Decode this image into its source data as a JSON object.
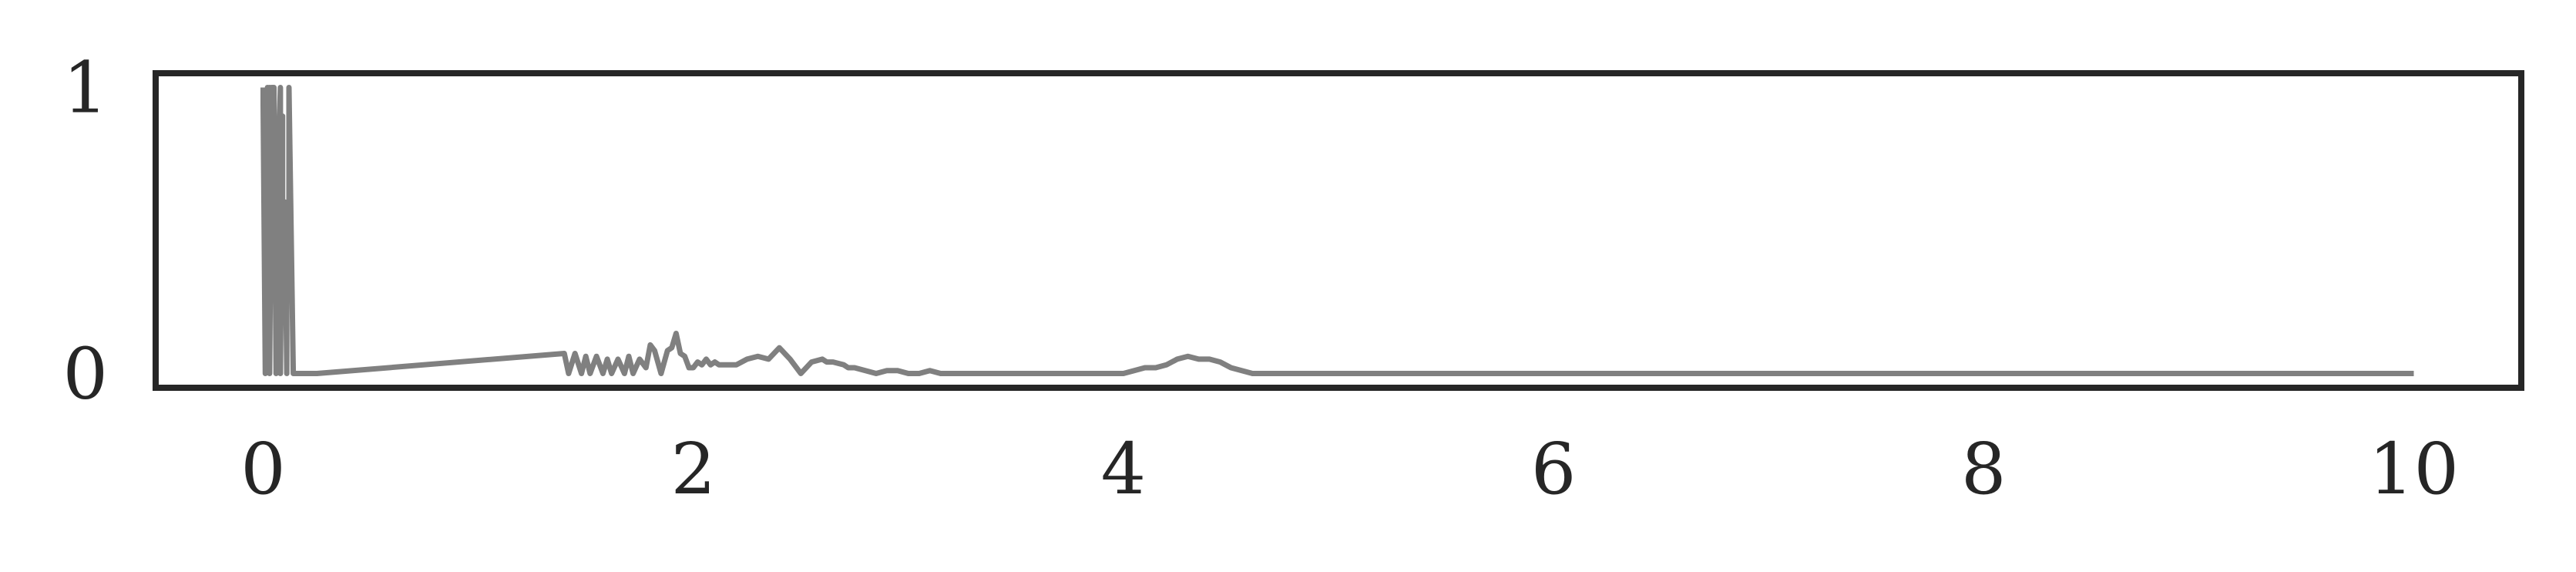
{
  "chart_data": {
    "type": "line",
    "title": "",
    "xlabel": "",
    "ylabel": "",
    "xlim": [
      -0.5,
      10.5
    ],
    "ylim": [
      -0.05,
      1.05
    ],
    "grid": false,
    "legend": "none",
    "x_ticks": [
      "0",
      "2",
      "4",
      "6",
      "8",
      "10"
    ],
    "x_tick_values": [
      0,
      2,
      4,
      6,
      8,
      10
    ],
    "y_ticks": [
      "0",
      "1"
    ],
    "y_tick_values": [
      0,
      1
    ],
    "colors": {
      "line": "#808080",
      "frame": "#262626",
      "text": "#262626"
    },
    "series": [
      {
        "x": [
          0.0,
          0.0,
          0.01,
          0.02,
          0.02,
          0.03,
          0.03,
          0.04,
          0.05,
          0.06,
          0.07,
          0.08,
          0.08,
          0.09,
          0.09,
          0.1,
          0.11,
          0.11,
          0.12,
          0.12,
          0.13,
          0.14,
          0.15,
          0.16,
          0.16,
          0.17,
          0.18,
          0.18,
          0.19,
          0.2,
          0.21,
          0.22,
          0.23,
          0.24,
          0.25,
          1.4,
          1.42,
          1.45,
          1.48,
          1.5,
          1.52,
          1.55,
          1.58,
          1.6,
          1.62,
          1.65,
          1.68,
          1.7,
          1.72,
          1.75,
          1.78,
          1.8,
          1.82,
          1.85,
          1.88,
          1.9,
          1.92,
          1.94,
          1.96,
          1.98,
          2.0,
          2.02,
          2.04,
          2.06,
          2.08,
          2.1,
          2.12,
          2.15,
          2.2,
          2.25,
          2.3,
          2.35,
          2.4,
          2.45,
          2.5,
          2.55,
          2.6,
          2.62,
          2.65,
          2.7,
          2.72,
          2.75,
          2.8,
          2.85,
          2.9,
          2.95,
          3.0,
          3.05,
          3.1,
          3.15,
          3.2,
          3.3,
          3.4,
          3.6,
          4.0,
          4.05,
          4.1,
          4.15,
          4.2,
          4.25,
          4.3,
          4.35,
          4.4,
          4.45,
          4.5,
          4.6,
          4.8,
          10.0
        ],
        "y": [
          1.0,
          0.94,
          0.0,
          1.0,
          0.6,
          1.0,
          0.0,
          1.0,
          1.0,
          0.0,
          0.75,
          1.0,
          0.0,
          0.9,
          0.55,
          0.6,
          0.0,
          0.55,
          0.6,
          1.0,
          0.5,
          0.0,
          0.0,
          0.0,
          0.0,
          0.0,
          0.0,
          0.0,
          0.0,
          0.0,
          0.0,
          0.0,
          0.0,
          0.0,
          0.0,
          0.07,
          0.0,
          0.07,
          0.0,
          0.06,
          0.0,
          0.06,
          0.0,
          0.05,
          0.0,
          0.05,
          0.0,
          0.06,
          0.0,
          0.05,
          0.02,
          0.1,
          0.08,
          0.0,
          0.08,
          0.09,
          0.14,
          0.07,
          0.06,
          0.02,
          0.02,
          0.04,
          0.03,
          0.05,
          0.03,
          0.04,
          0.03,
          0.03,
          0.03,
          0.05,
          0.06,
          0.05,
          0.09,
          0.05,
          0.0,
          0.04,
          0.05,
          0.04,
          0.04,
          0.03,
          0.02,
          0.02,
          0.01,
          0.0,
          0.01,
          0.01,
          0.0,
          0.0,
          0.01,
          0.0,
          0.0,
          0.0,
          0.0,
          0.0,
          0.0,
          0.01,
          0.02,
          0.02,
          0.03,
          0.05,
          0.06,
          0.05,
          0.05,
          0.04,
          0.02,
          0.0,
          0.0,
          0.0
        ]
      }
    ]
  }
}
